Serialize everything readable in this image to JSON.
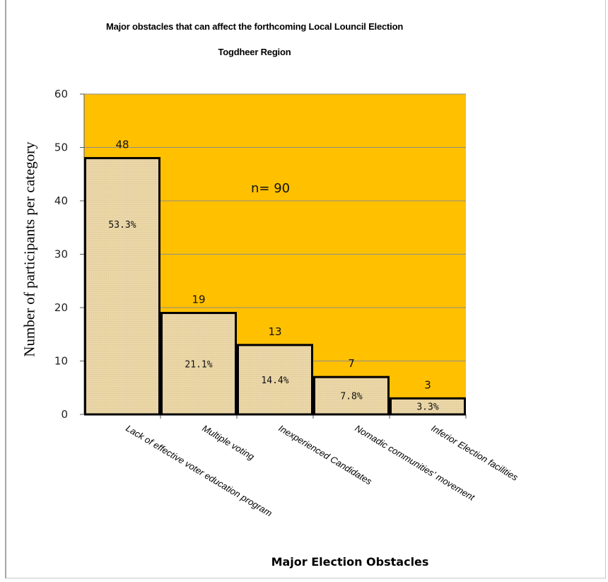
{
  "chart_data": {
    "type": "bar",
    "title": "Major obstacles that can affect the forthcoming Local Louncil Election",
    "subtitle": "Togdheer Region",
    "xlabel": "Major Election Obstacles",
    "ylabel": "Number of participants per category",
    "annotation": "n= 90",
    "categories": [
      "Lack of effective voter education program",
      "Multiple voting",
      "Inexperienced Candidates",
      "Nomadic communities' movement",
      "Inferior Election facilities"
    ],
    "values": [
      48,
      19,
      13,
      7,
      3
    ],
    "percent_labels": [
      "53.3%",
      "21.1%",
      "14.4%",
      "7.8%",
      "3.3%"
    ],
    "ylim": [
      0,
      60
    ],
    "yticks": [
      "0",
      "10",
      "20",
      "30",
      "40",
      "50",
      "60"
    ],
    "grid": true,
    "colors": {
      "plot_background": "#ffc000",
      "bar_fill": "#e9d4a4",
      "bar_outline": "#000000",
      "gridline": "#8c8c8c"
    }
  }
}
